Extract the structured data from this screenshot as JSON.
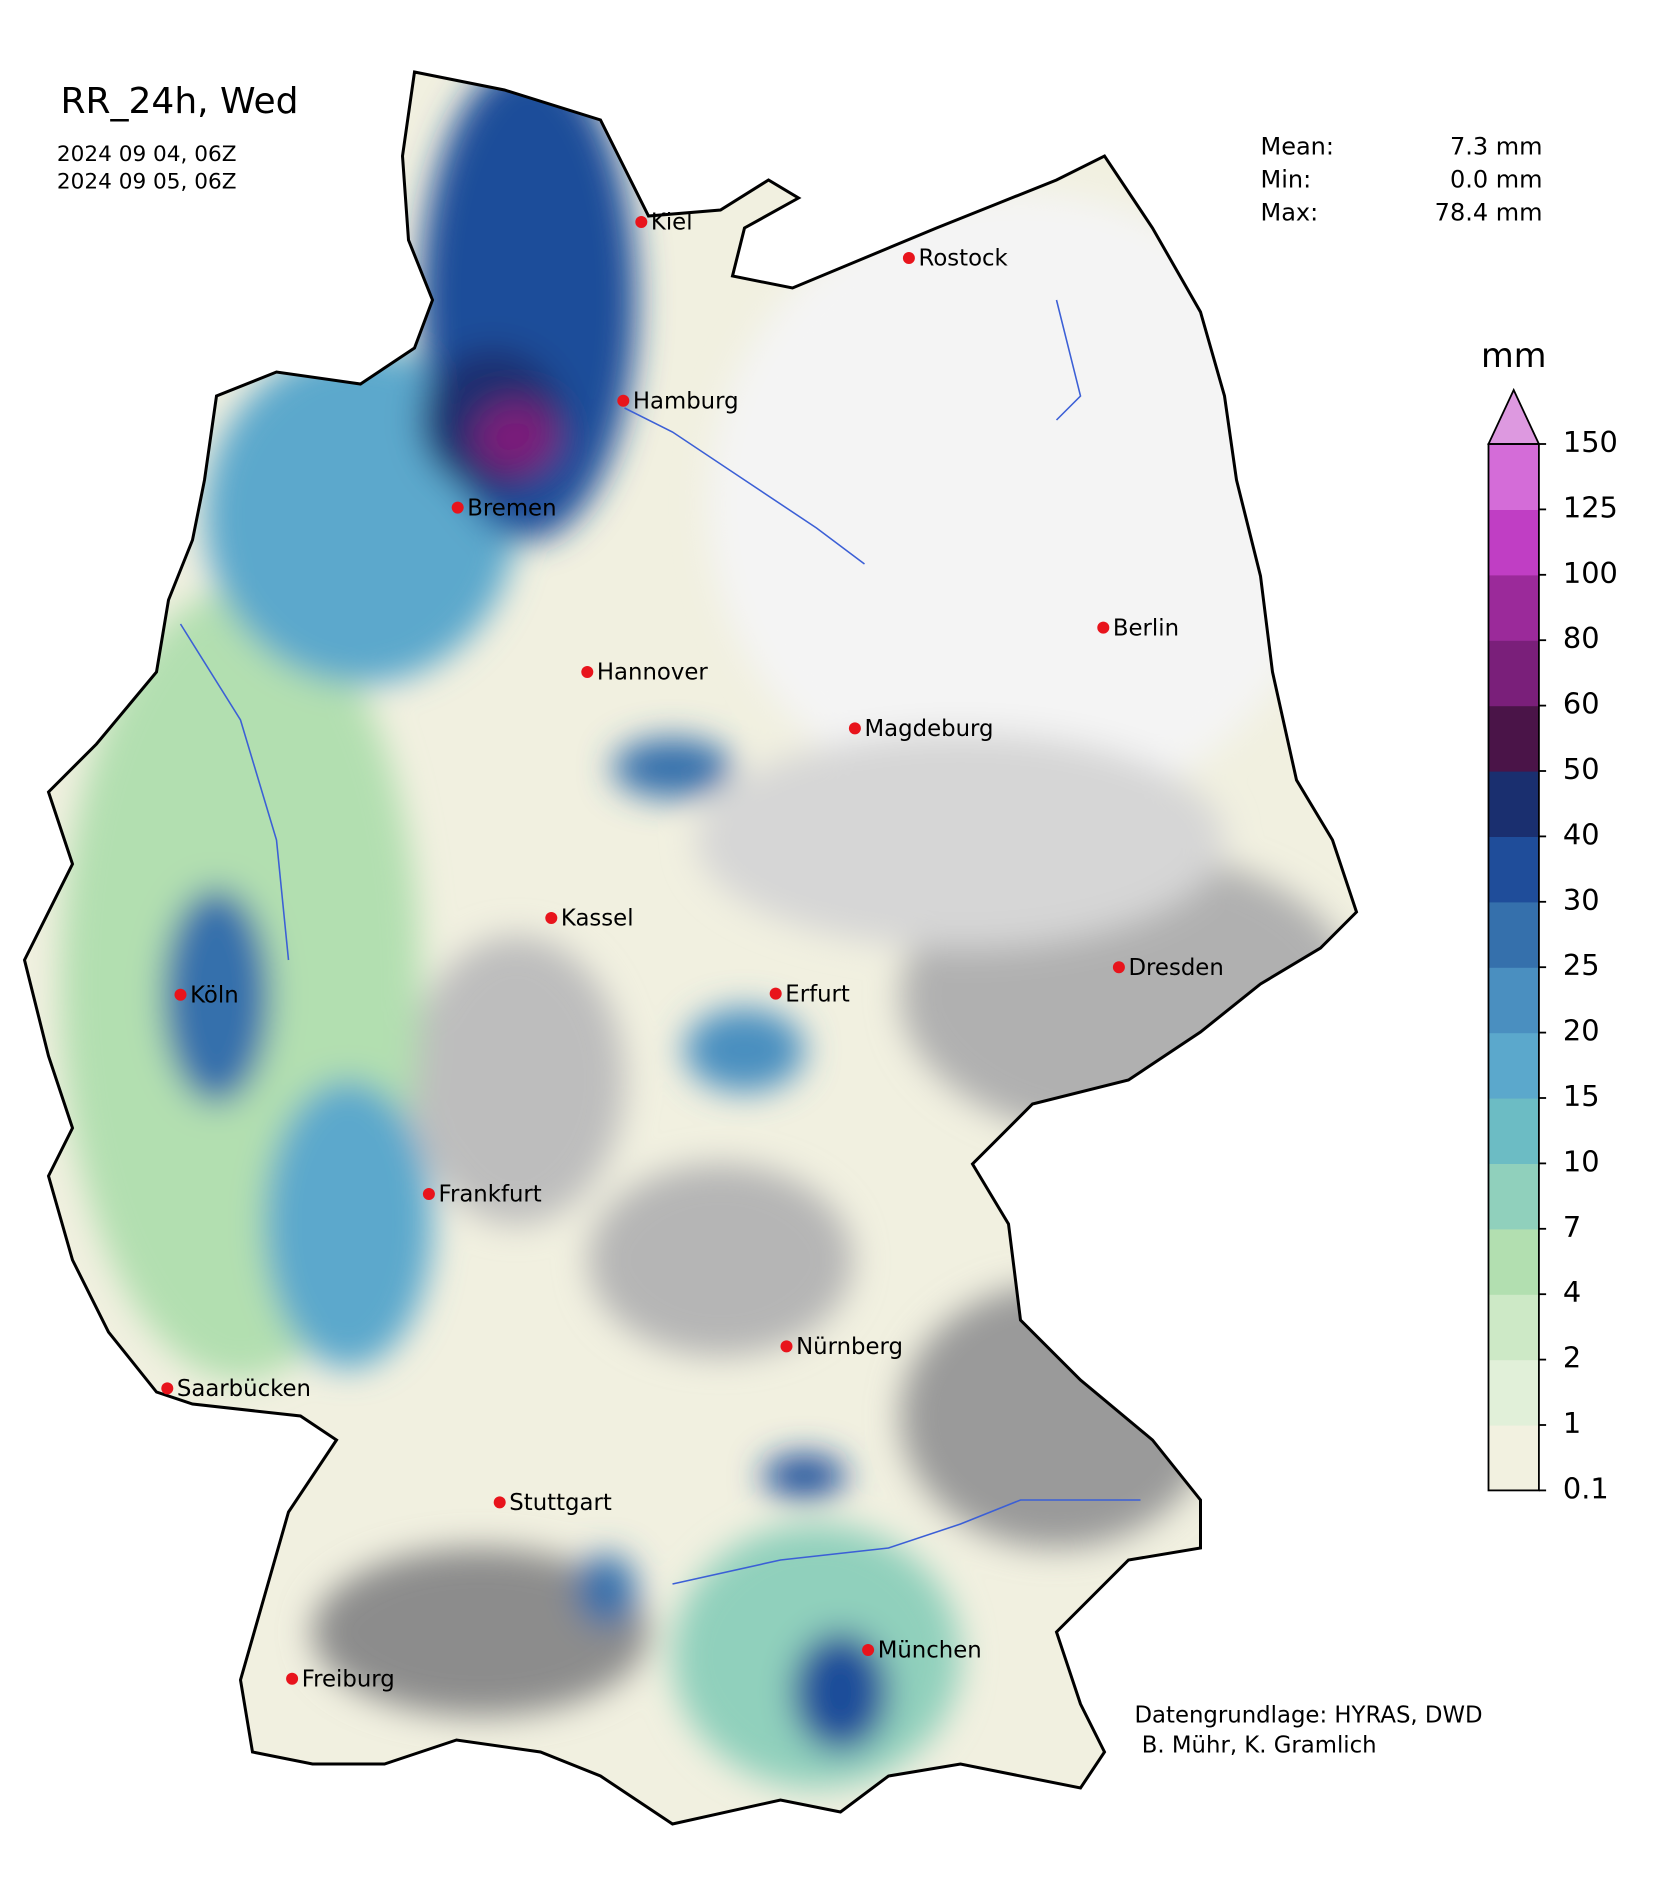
{
  "header": {
    "title": "RR_24h, Wed",
    "start": "2024 09 04, 06Z",
    "end": "2024 09 05, 06Z"
  },
  "stats": [
    {
      "label": "Mean:",
      "value": "7.3 mm"
    },
    {
      "label": "Min:",
      "value": "0.0 mm"
    },
    {
      "label": "Max:",
      "value": "78.4 mm"
    }
  ],
  "colorbar": {
    "unit": "mm",
    "levels": [
      0.1,
      1,
      2,
      4,
      7,
      10,
      15,
      20,
      25,
      30,
      40,
      50,
      60,
      80,
      100,
      125,
      150
    ],
    "colors": [
      "#f2f1e0",
      "#e1f0d9",
      "#cde9c6",
      "#b2dfb0",
      "#90d0bc",
      "#6cbcc4",
      "#5ba8cc",
      "#4a8fc0",
      "#3570ac",
      "#1f4d9a",
      "#1a2f6f",
      "#4a1448",
      "#7a1f7a",
      "#9b2a9a",
      "#c03ec4",
      "#d46cd8"
    ],
    "extend_color": "#dd99e0"
  },
  "cities": [
    {
      "name": "Kiel"
    },
    {
      "name": "Rostock"
    },
    {
      "name": "Hamburg"
    },
    {
      "name": "Bremen"
    },
    {
      "name": "Berlin"
    },
    {
      "name": "Hannover"
    },
    {
      "name": "Magdeburg"
    },
    {
      "name": "Kassel"
    },
    {
      "name": "Dresden"
    },
    {
      "name": "Köln"
    },
    {
      "name": "Erfurt"
    },
    {
      "name": "Frankfurt"
    },
    {
      "name": "Nürnberg"
    },
    {
      "name": "Saarbücken"
    },
    {
      "name": "Stuttgart"
    },
    {
      "name": "München"
    },
    {
      "name": "Freiburg"
    }
  ],
  "credits": [
    "Datengrundlage: HYRAS, DWD",
    " B. Mühr, K. Gramlich"
  ]
}
